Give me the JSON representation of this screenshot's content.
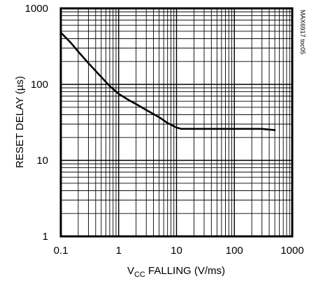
{
  "chart_data": {
    "type": "line",
    "x_scale": "log",
    "y_scale": "log",
    "xlim": [
      0.1,
      1000
    ],
    "ylim": [
      1,
      1000
    ],
    "grid": true,
    "x_ticks": [
      "0.1",
      "1",
      "10",
      "100",
      "1000"
    ],
    "y_ticks": [
      "1",
      "10",
      "100",
      "1000"
    ],
    "xlabel": {
      "prefix": "V",
      "subscript": "CC",
      "suffix": " FALLING (V/ms)"
    },
    "ylabel": "RESET DELAY (µs)",
    "tag": "MAX6917 toc05",
    "series": [
      {
        "x": [
          0.1,
          0.15,
          0.2,
          0.3,
          0.5,
          0.7,
          1,
          1.5,
          2,
          3,
          5,
          7,
          10,
          12,
          20,
          50,
          100,
          200,
          300,
          500
        ],
        "y": [
          480,
          350,
          270,
          190,
          125,
          95,
          75,
          62,
          55,
          46,
          37,
          31,
          27,
          26,
          26,
          26,
          26,
          26,
          26,
          25
        ]
      }
    ]
  }
}
